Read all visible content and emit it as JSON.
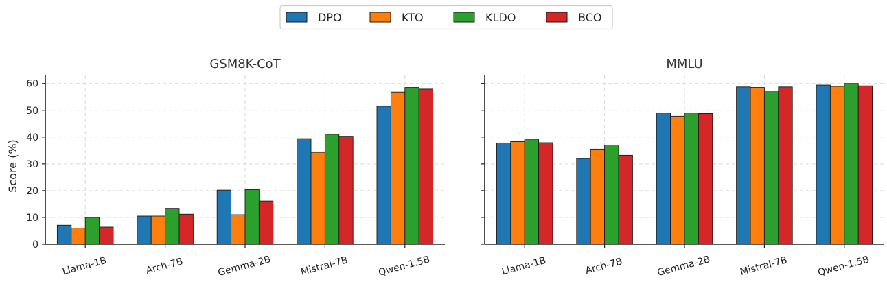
{
  "chart_data": [
    {
      "type": "bar",
      "title": "GSM8K-CoT",
      "xlabel": "",
      "ylabel": "Score (%)",
      "ylim": [
        0,
        63
      ],
      "yticks": [
        0,
        10,
        20,
        30,
        40,
        50,
        60
      ],
      "grid": true,
      "categories": [
        "Llama-1B",
        "Arch-7B",
        "Gemma-2B",
        "Mistral-7B",
        "Qwen-1.5B"
      ],
      "series": [
        {
          "name": "DPO",
          "color": "#1f77b4",
          "values": [
            7.1,
            10.5,
            20.2,
            39.4,
            51.5
          ]
        },
        {
          "name": "KTO",
          "color": "#ff7f0e",
          "values": [
            6.0,
            10.5,
            11.0,
            34.3,
            56.8
          ]
        },
        {
          "name": "KLDO",
          "color": "#2ca02c",
          "values": [
            10.0,
            13.4,
            20.4,
            41.0,
            58.5
          ]
        },
        {
          "name": "BCO",
          "color": "#d62728",
          "values": [
            6.4,
            11.2,
            16.1,
            40.3,
            57.9
          ]
        }
      ]
    },
    {
      "type": "bar",
      "title": "MMLU",
      "xlabel": "",
      "ylabel": "",
      "ylim": [
        0,
        63
      ],
      "yticks": [
        0,
        10,
        20,
        30,
        40,
        50,
        60
      ],
      "grid": true,
      "categories": [
        "Llama-1B",
        "Arch-7B",
        "Gemma-2B",
        "Mistral-7B",
        "Qwen-1.5B"
      ],
      "series": [
        {
          "name": "DPO",
          "color": "#1f77b4",
          "values": [
            37.8,
            32.0,
            49.0,
            58.7,
            59.4
          ]
        },
        {
          "name": "KTO",
          "color": "#ff7f0e",
          "values": [
            38.3,
            35.5,
            47.8,
            58.5,
            58.9
          ]
        },
        {
          "name": "KLDO",
          "color": "#2ca02c",
          "values": [
            39.2,
            37.0,
            49.0,
            57.2,
            60.0
          ]
        },
        {
          "name": "BCO",
          "color": "#d62728",
          "values": [
            37.9,
            33.2,
            48.8,
            58.7,
            59.1
          ]
        }
      ]
    }
  ],
  "legend": {
    "position": "top-center",
    "entries": [
      {
        "label": "DPO",
        "color": "#1f77b4"
      },
      {
        "label": "KTO",
        "color": "#ff7f0e"
      },
      {
        "label": "KLDO",
        "color": "#2ca02c"
      },
      {
        "label": "BCO",
        "color": "#d62728"
      }
    ]
  }
}
